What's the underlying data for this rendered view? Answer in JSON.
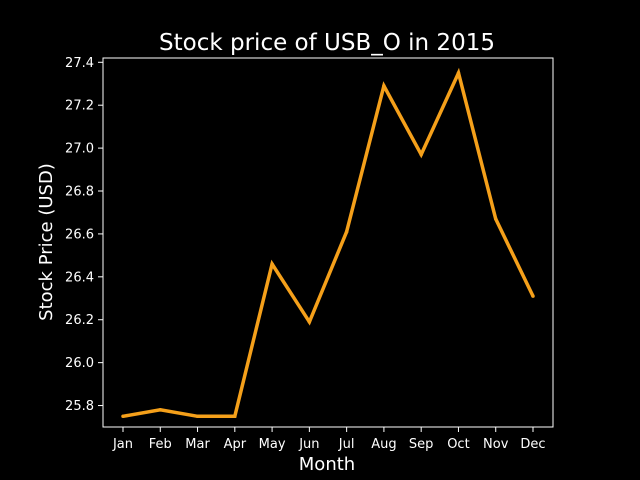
{
  "chart_data": {
    "type": "line",
    "title": "Stock price of USB_O in 2015",
    "xlabel": "Month",
    "ylabel": "Stock Price (USD)",
    "categories": [
      "Jan",
      "Feb",
      "Mar",
      "Apr",
      "May",
      "Jun",
      "Jul",
      "Aug",
      "Sep",
      "Oct",
      "Nov",
      "Dec"
    ],
    "series": [
      {
        "values": [
          25.75,
          25.78,
          25.75,
          25.75,
          26.46,
          26.19,
          26.61,
          27.29,
          26.97,
          27.35,
          26.67,
          26.31
        ],
        "color": "#f5a01a"
      }
    ],
    "ylim": [
      25.7,
      27.42
    ],
    "yticks": [
      25.8,
      26.0,
      26.2,
      26.4,
      26.6,
      26.8,
      27.0,
      27.2,
      27.4
    ],
    "ytick_labels": [
      "25.8",
      "26.0",
      "26.2",
      "26.4",
      "26.6",
      "26.8",
      "27.0",
      "27.2",
      "27.4"
    ],
    "grid": false,
    "background": "#000000",
    "axis_color": "#ffffff"
  }
}
